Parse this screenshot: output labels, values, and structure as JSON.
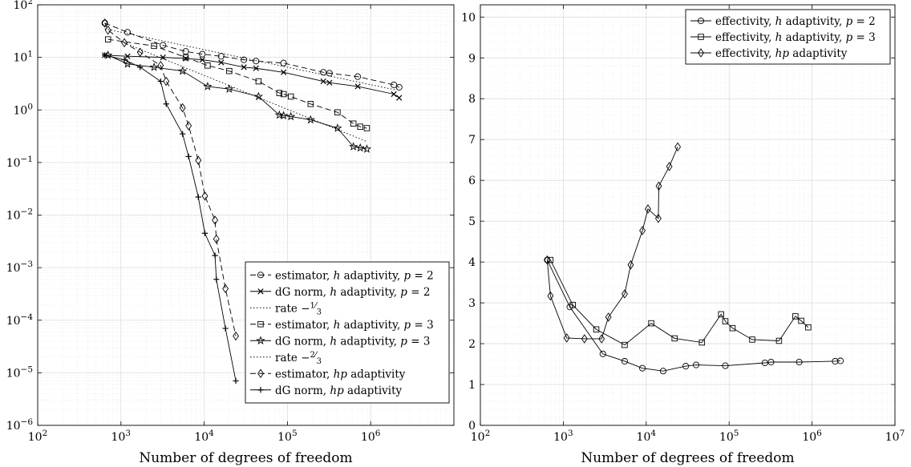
{
  "chart_data": [
    {
      "type": "line",
      "xscale": "log",
      "yscale": "log",
      "xlim": [
        100,
        10000000
      ],
      "ylim": [
        1e-06,
        100
      ],
      "xlabel": "Number of degrees of freedom",
      "ylabel": "",
      "grid": true,
      "legend_position": "bottom-right",
      "x_ticks": [
        {
          "value": 100,
          "label": "10^2"
        },
        {
          "value": 1000,
          "label": "10^3"
        },
        {
          "value": 10000,
          "label": "10^4"
        },
        {
          "value": 100000,
          "label": "10^5"
        },
        {
          "value": 1000000,
          "label": "10^6"
        }
      ],
      "y_ticks": [
        {
          "value": 1e-06,
          "label": "10^-6"
        },
        {
          "value": 1e-05,
          "label": "10^-5"
        },
        {
          "value": 0.0001,
          "label": "10^-4"
        },
        {
          "value": 0.001,
          "label": "10^-3"
        },
        {
          "value": 0.01,
          "label": "10^-2"
        },
        {
          "value": 0.1,
          "label": "10^-1"
        },
        {
          "value": 1,
          "label": "10^0"
        },
        {
          "value": 10,
          "label": "10^1"
        },
        {
          "value": 100,
          "label": "10^2"
        }
      ],
      "series": [
        {
          "legend": [
            "estimator, ",
            "h",
            " adaptivity, ",
            "p",
            " = 2"
          ],
          "marker": "circle",
          "dash": "dashed",
          "x": [
            640,
            1200,
            3200,
            6000,
            9500,
            16000,
            30000,
            42000,
            90000,
            270000,
            320000,
            700000,
            1900000,
            2200000
          ],
          "y": [
            45,
            30,
            17,
            13,
            11.5,
            10.5,
            9,
            8.5,
            7.8,
            5.2,
            5.0,
            4.3,
            3.0,
            2.7
          ]
        },
        {
          "legend": [
            "dG norm, ",
            "h",
            " adaptivity, ",
            "p",
            " = 2"
          ],
          "marker": "x",
          "dash": "solid",
          "x": [
            640,
            1200,
            3200,
            6000,
            9500,
            16000,
            30000,
            42000,
            90000,
            270000,
            320000,
            700000,
            1900000,
            2200000
          ],
          "y": [
            11,
            10.5,
            10,
            9.5,
            9,
            8,
            6.5,
            6.2,
            5.2,
            3.5,
            3.3,
            2.8,
            2.0,
            1.7
          ]
        },
        {
          "legend": [
            "rate −",
            "1/3"
          ],
          "marker": "none",
          "dash": "dotted",
          "x": [
            640,
            2000000
          ],
          "y": [
            35,
            2.4
          ]
        },
        {
          "legend": [
            "estimator, ",
            "h",
            " adaptivity, ",
            "p",
            " = 3"
          ],
          "marker": "square",
          "dash": "dashed",
          "x": [
            700,
            2500,
            6000,
            11000,
            20000,
            45000,
            80000,
            90000,
            110000,
            190000,
            400000,
            620000,
            750000,
            900000
          ],
          "y": [
            22,
            16.5,
            10,
            7,
            5.5,
            3.5,
            2.1,
            2.0,
            1.8,
            1.3,
            0.9,
            0.55,
            0.48,
            0.45
          ]
        },
        {
          "legend": [
            "dG norm, ",
            "h",
            " adaptivity, ",
            "p",
            " = 3"
          ],
          "marker": "star",
          "dash": "solid",
          "x": [
            700,
            1200,
            2500,
            5500,
            11000,
            20000,
            45000,
            80000,
            90000,
            110000,
            190000,
            400000,
            620000,
            750000,
            900000
          ],
          "y": [
            11,
            7.5,
            6.5,
            5.5,
            2.8,
            2.5,
            1.8,
            0.8,
            0.78,
            0.75,
            0.65,
            0.45,
            0.2,
            0.19,
            0.18
          ]
        },
        {
          "legend": [
            "rate −",
            "2/3"
          ],
          "marker": "none",
          "dash": "dotted",
          "x": [
            1000,
            900000
          ],
          "y": [
            20,
            0.25
          ]
        },
        {
          "legend": [
            "estimator, ",
            "hp",
            " adaptivity"
          ],
          "marker": "diamond",
          "dash": "dashed",
          "x": [
            640,
            700,
            1100,
            1700,
            3000,
            3500,
            5500,
            6500,
            8500,
            10200,
            13500,
            14000,
            18000,
            24000
          ],
          "y": [
            45,
            33,
            19,
            12.5,
            7,
            3.5,
            1.1,
            0.5,
            0.11,
            0.023,
            0.008,
            0.0035,
            0.0004,
            5e-05
          ]
        },
        {
          "legend": [
            "dG norm, ",
            "hp",
            " adaptivity"
          ],
          "marker": "plus",
          "dash": "solid",
          "x": [
            640,
            1100,
            1700,
            3000,
            3500,
            5500,
            6500,
            8500,
            10200,
            13500,
            14000,
            18000,
            24000
          ],
          "y": [
            11,
            9,
            6.5,
            3.5,
            1.3,
            0.35,
            0.13,
            0.022,
            0.0045,
            0.0017,
            0.0006,
            7e-05,
            7e-06
          ]
        }
      ]
    },
    {
      "type": "line",
      "xscale": "log",
      "yscale": "linear",
      "xlim": [
        100,
        10000000
      ],
      "ylim": [
        0,
        10.3
      ],
      "xlabel": "Number of degrees of freedom",
      "ylabel": "",
      "grid": true,
      "legend_position": "top-right",
      "x_ticks": [
        {
          "value": 100,
          "label": "10^2"
        },
        {
          "value": 1000,
          "label": "10^3"
        },
        {
          "value": 10000,
          "label": "10^4"
        },
        {
          "value": 100000,
          "label": "10^5"
        },
        {
          "value": 1000000,
          "label": "10^6"
        },
        {
          "value": 10000000,
          "label": "10^7"
        }
      ],
      "y_ticks": [
        {
          "value": 0,
          "label": "0"
        },
        {
          "value": 1,
          "label": "1"
        },
        {
          "value": 2,
          "label": "2"
        },
        {
          "value": 3,
          "label": "3"
        },
        {
          "value": 4,
          "label": "4"
        },
        {
          "value": 5,
          "label": "5"
        },
        {
          "value": 6,
          "label": "6"
        },
        {
          "value": 7,
          "label": "7"
        },
        {
          "value": 8,
          "label": "8"
        },
        {
          "value": 9,
          "label": "9"
        },
        {
          "value": 10,
          "label": "10"
        }
      ],
      "series": [
        {
          "legend": [
            "effectivity, ",
            "h",
            " adaptivity, ",
            "p",
            " = 2"
          ],
          "marker": "circle",
          "dash": "solid",
          "x": [
            640,
            1200,
            3000,
            5500,
            9000,
            16000,
            30000,
            40000,
            90000,
            270000,
            320000,
            700000,
            1900000,
            2200000
          ],
          "y": [
            4.05,
            2.9,
            1.75,
            1.57,
            1.4,
            1.33,
            1.45,
            1.48,
            1.46,
            1.53,
            1.55,
            1.55,
            1.57,
            1.58
          ]
        },
        {
          "legend": [
            "effectivity, ",
            "h",
            " adaptivity, ",
            "p",
            " = 3"
          ],
          "marker": "square",
          "dash": "solid",
          "x": [
            700,
            1300,
            2500,
            5500,
            11500,
            22000,
            47000,
            80000,
            90000,
            110000,
            190000,
            400000,
            630000,
            740000,
            900000
          ],
          "y": [
            4.05,
            2.95,
            2.35,
            1.97,
            2.5,
            2.13,
            2.03,
            2.72,
            2.55,
            2.38,
            2.1,
            2.07,
            2.67,
            2.56,
            2.4
          ]
        },
        {
          "legend": [
            "effectivity, ",
            "hp",
            " adaptivity"
          ],
          "marker": "diamond",
          "dash": "solid",
          "x": [
            640,
            700,
            1100,
            1800,
            2900,
            3500,
            5500,
            6500,
            9000,
            10500,
            14000,
            14200,
            19000,
            24000
          ],
          "y": [
            4.05,
            3.17,
            2.14,
            2.12,
            2.12,
            2.65,
            3.22,
            3.93,
            4.77,
            5.3,
            5.07,
            5.86,
            6.34,
            6.82
          ]
        }
      ]
    }
  ]
}
